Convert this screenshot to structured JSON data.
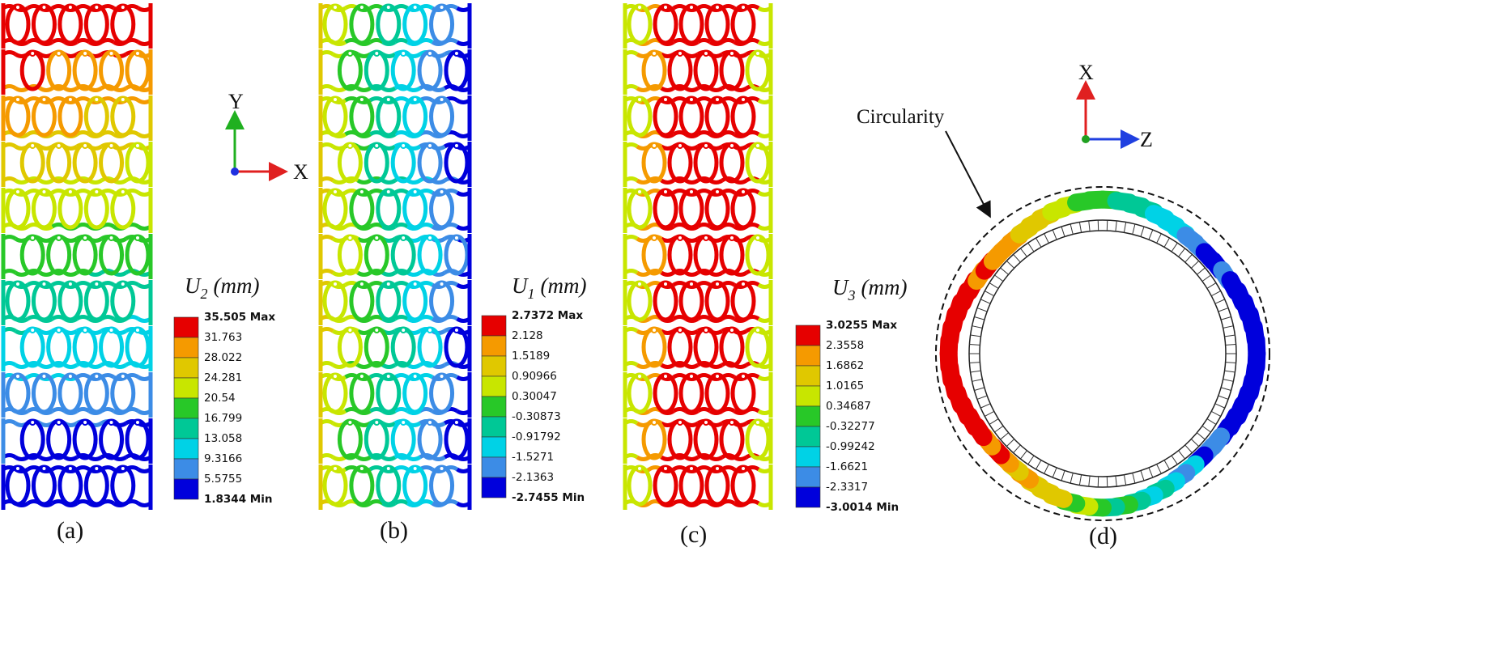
{
  "figure": {
    "panels": [
      {
        "label": "(a)",
        "legend": {
          "symbol": "U",
          "subscript": "2",
          "unit": "(mm)",
          "levels": [
            "35.505 Max",
            "31.763",
            "28.022",
            "24.281",
            "20.54",
            "16.799",
            "13.058",
            "9.3166",
            "5.5755",
            "1.8344 Min"
          ]
        }
      },
      {
        "label": "(b)",
        "legend": {
          "symbol": "U",
          "subscript": "1",
          "unit": "(mm)",
          "levels": [
            "2.7372 Max",
            "2.128",
            "1.5189",
            "0.90966",
            "0.30047",
            "-0.30873",
            "-0.91792",
            "-1.5271",
            "-2.1363",
            "-2.7455 Min"
          ]
        }
      },
      {
        "label": "(c)",
        "legend": {
          "symbol": "U",
          "subscript": "3",
          "unit": "(mm)",
          "levels": [
            "3.0255 Max",
            "2.3558",
            "1.6862",
            "1.0165",
            "0.34687",
            "-0.32277",
            "-0.99242",
            "-1.6621",
            "-2.3317",
            "-3.0014 Min"
          ]
        }
      },
      {
        "label": "(d)"
      }
    ],
    "axes_ab": {
      "vertical": "Y",
      "horizontal": "X"
    },
    "axes_d": {
      "vertical": "X",
      "horizontal": "Z"
    },
    "annotation": "Circularity",
    "colormap": [
      "#e60000",
      "#f59a00",
      "#e0c800",
      "#c8e600",
      "#28c828",
      "#00c896",
      "#00d2e6",
      "#3c8ce6",
      "#0000dc"
    ]
  }
}
